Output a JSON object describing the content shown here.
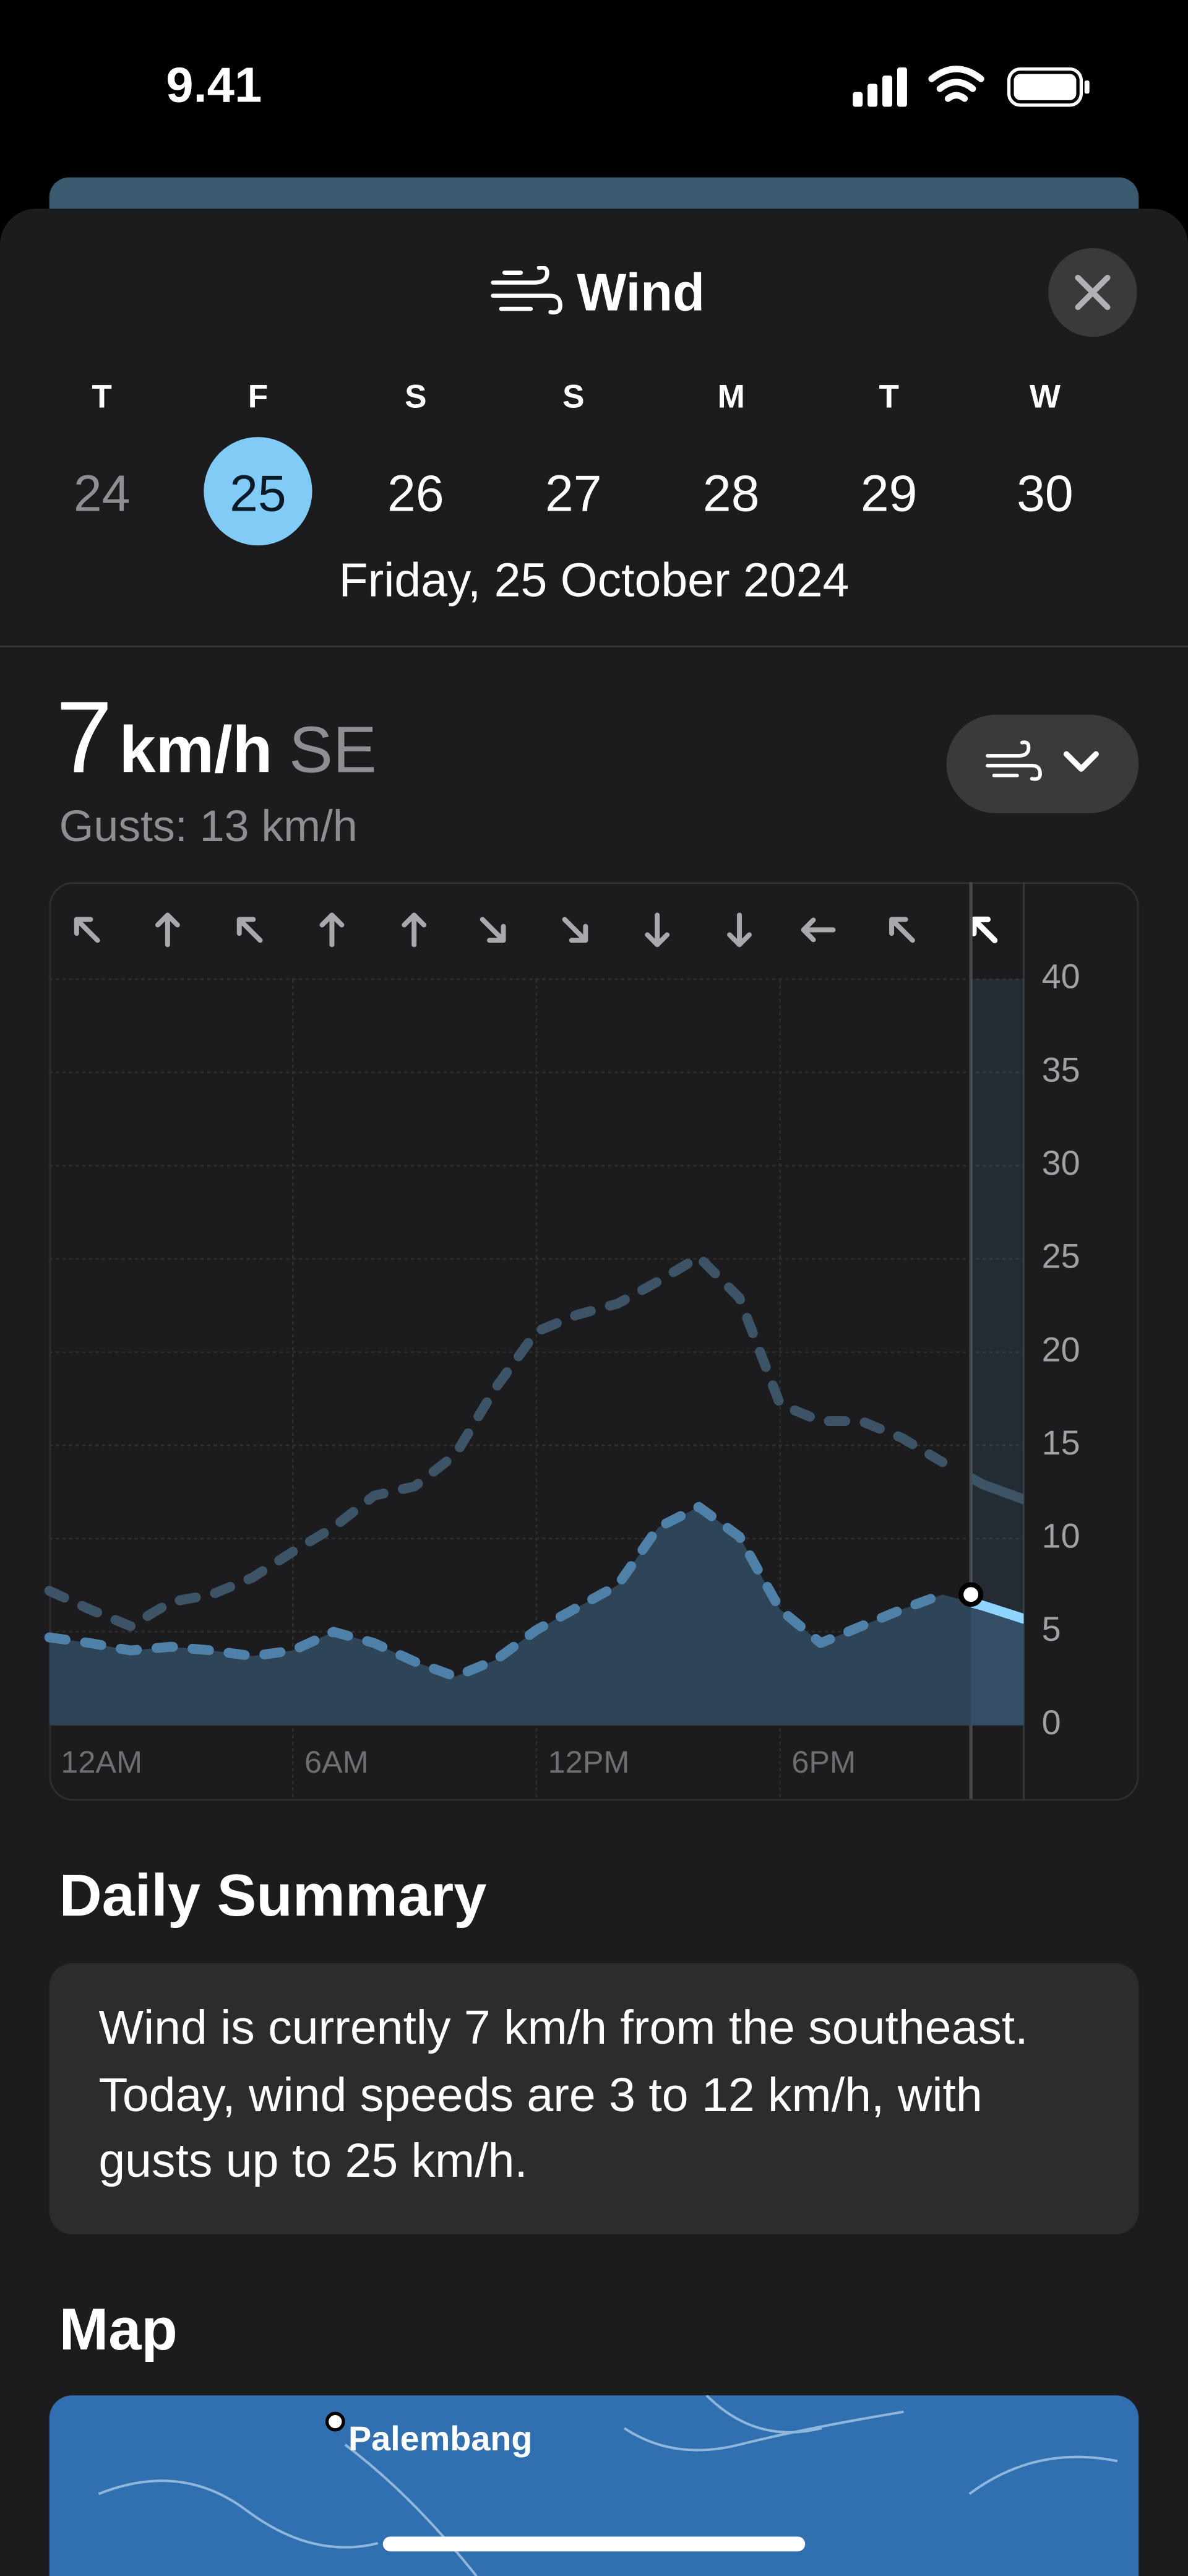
{
  "status": {
    "time": "9.41"
  },
  "header": {
    "title": "Wind"
  },
  "days": {
    "letters": [
      "T",
      "F",
      "S",
      "S",
      "M",
      "T",
      "W"
    ],
    "numbers": [
      "24",
      "25",
      "26",
      "27",
      "28",
      "29",
      "30"
    ],
    "selected_date": "Friday, 25 October 2024"
  },
  "current": {
    "speed": 7,
    "unit": "km/h",
    "direction": "SE",
    "gusts": "Gusts: 13 km/h"
  },
  "chart_data": {
    "type": "line",
    "x": [
      0,
      1,
      2,
      3,
      4,
      5,
      6,
      7,
      8,
      9,
      10,
      11,
      12,
      13,
      14,
      15,
      16,
      17,
      18,
      19,
      20,
      21,
      22,
      23,
      24
    ],
    "xlim": [
      0,
      24
    ],
    "xticks": [
      {
        "value": 0,
        "label": "12AM"
      },
      {
        "value": 6,
        "label": "6AM"
      },
      {
        "value": 12,
        "label": "12PM"
      },
      {
        "value": 18,
        "label": "6PM"
      }
    ],
    "ylim": [
      0,
      40
    ],
    "yticks": [
      0,
      5,
      10,
      15,
      20,
      25,
      30,
      35,
      40
    ],
    "grid": true,
    "now_x": 22.7,
    "series": [
      {
        "name": "Wind",
        "color": "#4f81a8",
        "values": [
          4.7,
          4.4,
          4.0,
          4.2,
          4.0,
          3.7,
          4.0,
          5.0,
          4.4,
          3.4,
          2.6,
          3.5,
          5.1,
          6.3,
          7.5,
          10.6,
          11.7,
          10.1,
          6.2,
          4.4,
          5.3,
          6.2,
          7.0,
          6.4,
          5.7
        ]
      },
      {
        "name": "Gusts",
        "color": "#3d5366",
        "values": [
          7.2,
          6.2,
          5.3,
          6.6,
          7.0,
          7.9,
          9.3,
          10.6,
          12.3,
          12.8,
          14.5,
          18.1,
          21.1,
          22.0,
          22.6,
          23.8,
          25.1,
          22.9,
          17.2,
          16.3,
          16.3,
          15.4,
          14.1,
          12.9,
          12.1
        ]
      }
    ]
  },
  "summary": {
    "title": "Daily Summary",
    "text": "Wind is currently 7 km/h from the southeast. Today, wind speeds are 3 to 12 km/h, with gusts up to 25 km/h."
  },
  "map": {
    "title": "Map",
    "city": "Palembang"
  }
}
